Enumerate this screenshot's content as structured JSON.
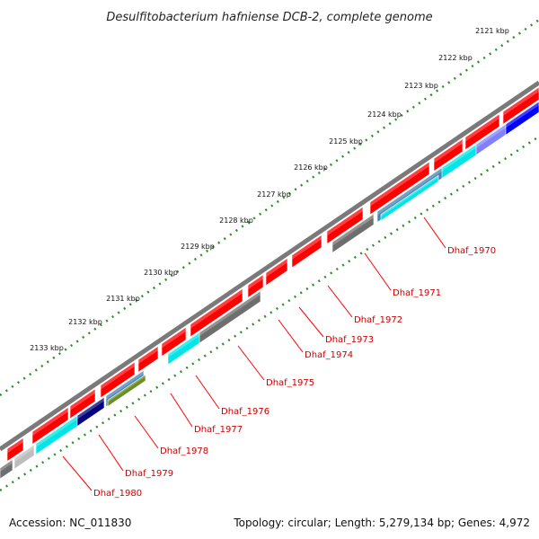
{
  "title": "Desulfitobacterium hafniense DCB-2, complete genome",
  "footer": {
    "accession": "Accession: NC_011830",
    "summary": "Topology: circular; Length: 5,279,134 bp; Genes: 4,972"
  },
  "ruler_labels": [
    "2121 kbp",
    "2122 kbp",
    "2123 kbp",
    "2124 kbp",
    "2125 kbp",
    "2126 kbp",
    "2127 kbp",
    "2128 kbp",
    "2129 kbp",
    "2130 kbp",
    "2131 kbp",
    "2132 kbp",
    "2133 kbp"
  ],
  "gene_labels": [
    "Dhaf_1970",
    "Dhaf_1971",
    "Dhaf_1972",
    "Dhaf_1973",
    "Dhaf_1974",
    "Dhaf_1975",
    "Dhaf_1976",
    "Dhaf_1977",
    "Dhaf_1978",
    "Dhaf_1979",
    "Dhaf_1980"
  ],
  "colors": {
    "forward_gene": "#ff0000",
    "backbone": "#7a7a7a",
    "tick": "#2e8b2e",
    "label": "#cc0000",
    "cyan": "#00e5e5",
    "gray": "#6e6e6e",
    "blue": "#0000ff",
    "navy": "#000080",
    "olive": "#6b8e23",
    "lavender": "#8080ff",
    "steel": "#4682b4",
    "silver": "#bdbdbd"
  }
}
